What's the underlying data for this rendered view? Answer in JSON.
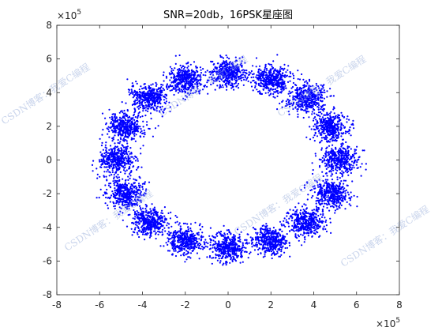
{
  "chart_data": {
    "type": "scatter",
    "title": "SNR=20db，16PSK星座图",
    "xlabel": "",
    "ylabel": "",
    "xlim": [
      -8,
      8
    ],
    "ylim": [
      -8,
      8
    ],
    "xticks": [
      -8,
      -6,
      -4,
      -2,
      0,
      2,
      4,
      6,
      8
    ],
    "yticks": [
      -8,
      -6,
      -4,
      -2,
      0,
      2,
      4,
      6,
      8
    ],
    "x_exponent": "×10",
    "x_exponent_power": "5",
    "y_exponent": "×10",
    "y_exponent_power": "5",
    "grid": false,
    "marker_color": "#0000ff",
    "series": [
      {
        "symbols": 16,
        "ring_radius": 5.2,
        "cluster_spread": 0.42,
        "points_per_symbol": 420,
        "cluster_centers": [
          [
            5.2,
            0.0
          ],
          [
            4.8,
            2.0
          ],
          [
            3.68,
            3.68
          ],
          [
            2.0,
            4.8
          ],
          [
            0.0,
            5.2
          ],
          [
            -2.0,
            4.8
          ],
          [
            -3.68,
            3.68
          ],
          [
            -4.8,
            2.0
          ],
          [
            -5.2,
            0.0
          ],
          [
            -4.8,
            -2.0
          ],
          [
            -3.68,
            -3.68
          ],
          [
            -2.0,
            -4.8
          ],
          [
            0.0,
            -5.2
          ],
          [
            2.0,
            -4.8
          ],
          [
            3.68,
            -3.68
          ],
          [
            4.8,
            -2.0
          ]
        ]
      }
    ]
  },
  "watermarks": [
    "CSDN博客：我爱C编程",
    "CSDN博客：我爱C编程",
    "CSDN博客：我爱C编程",
    "CSDN博客：我爱C编程",
    "CSDN博客：我爱C编程",
    "CSDN博客：我爱C编程"
  ]
}
